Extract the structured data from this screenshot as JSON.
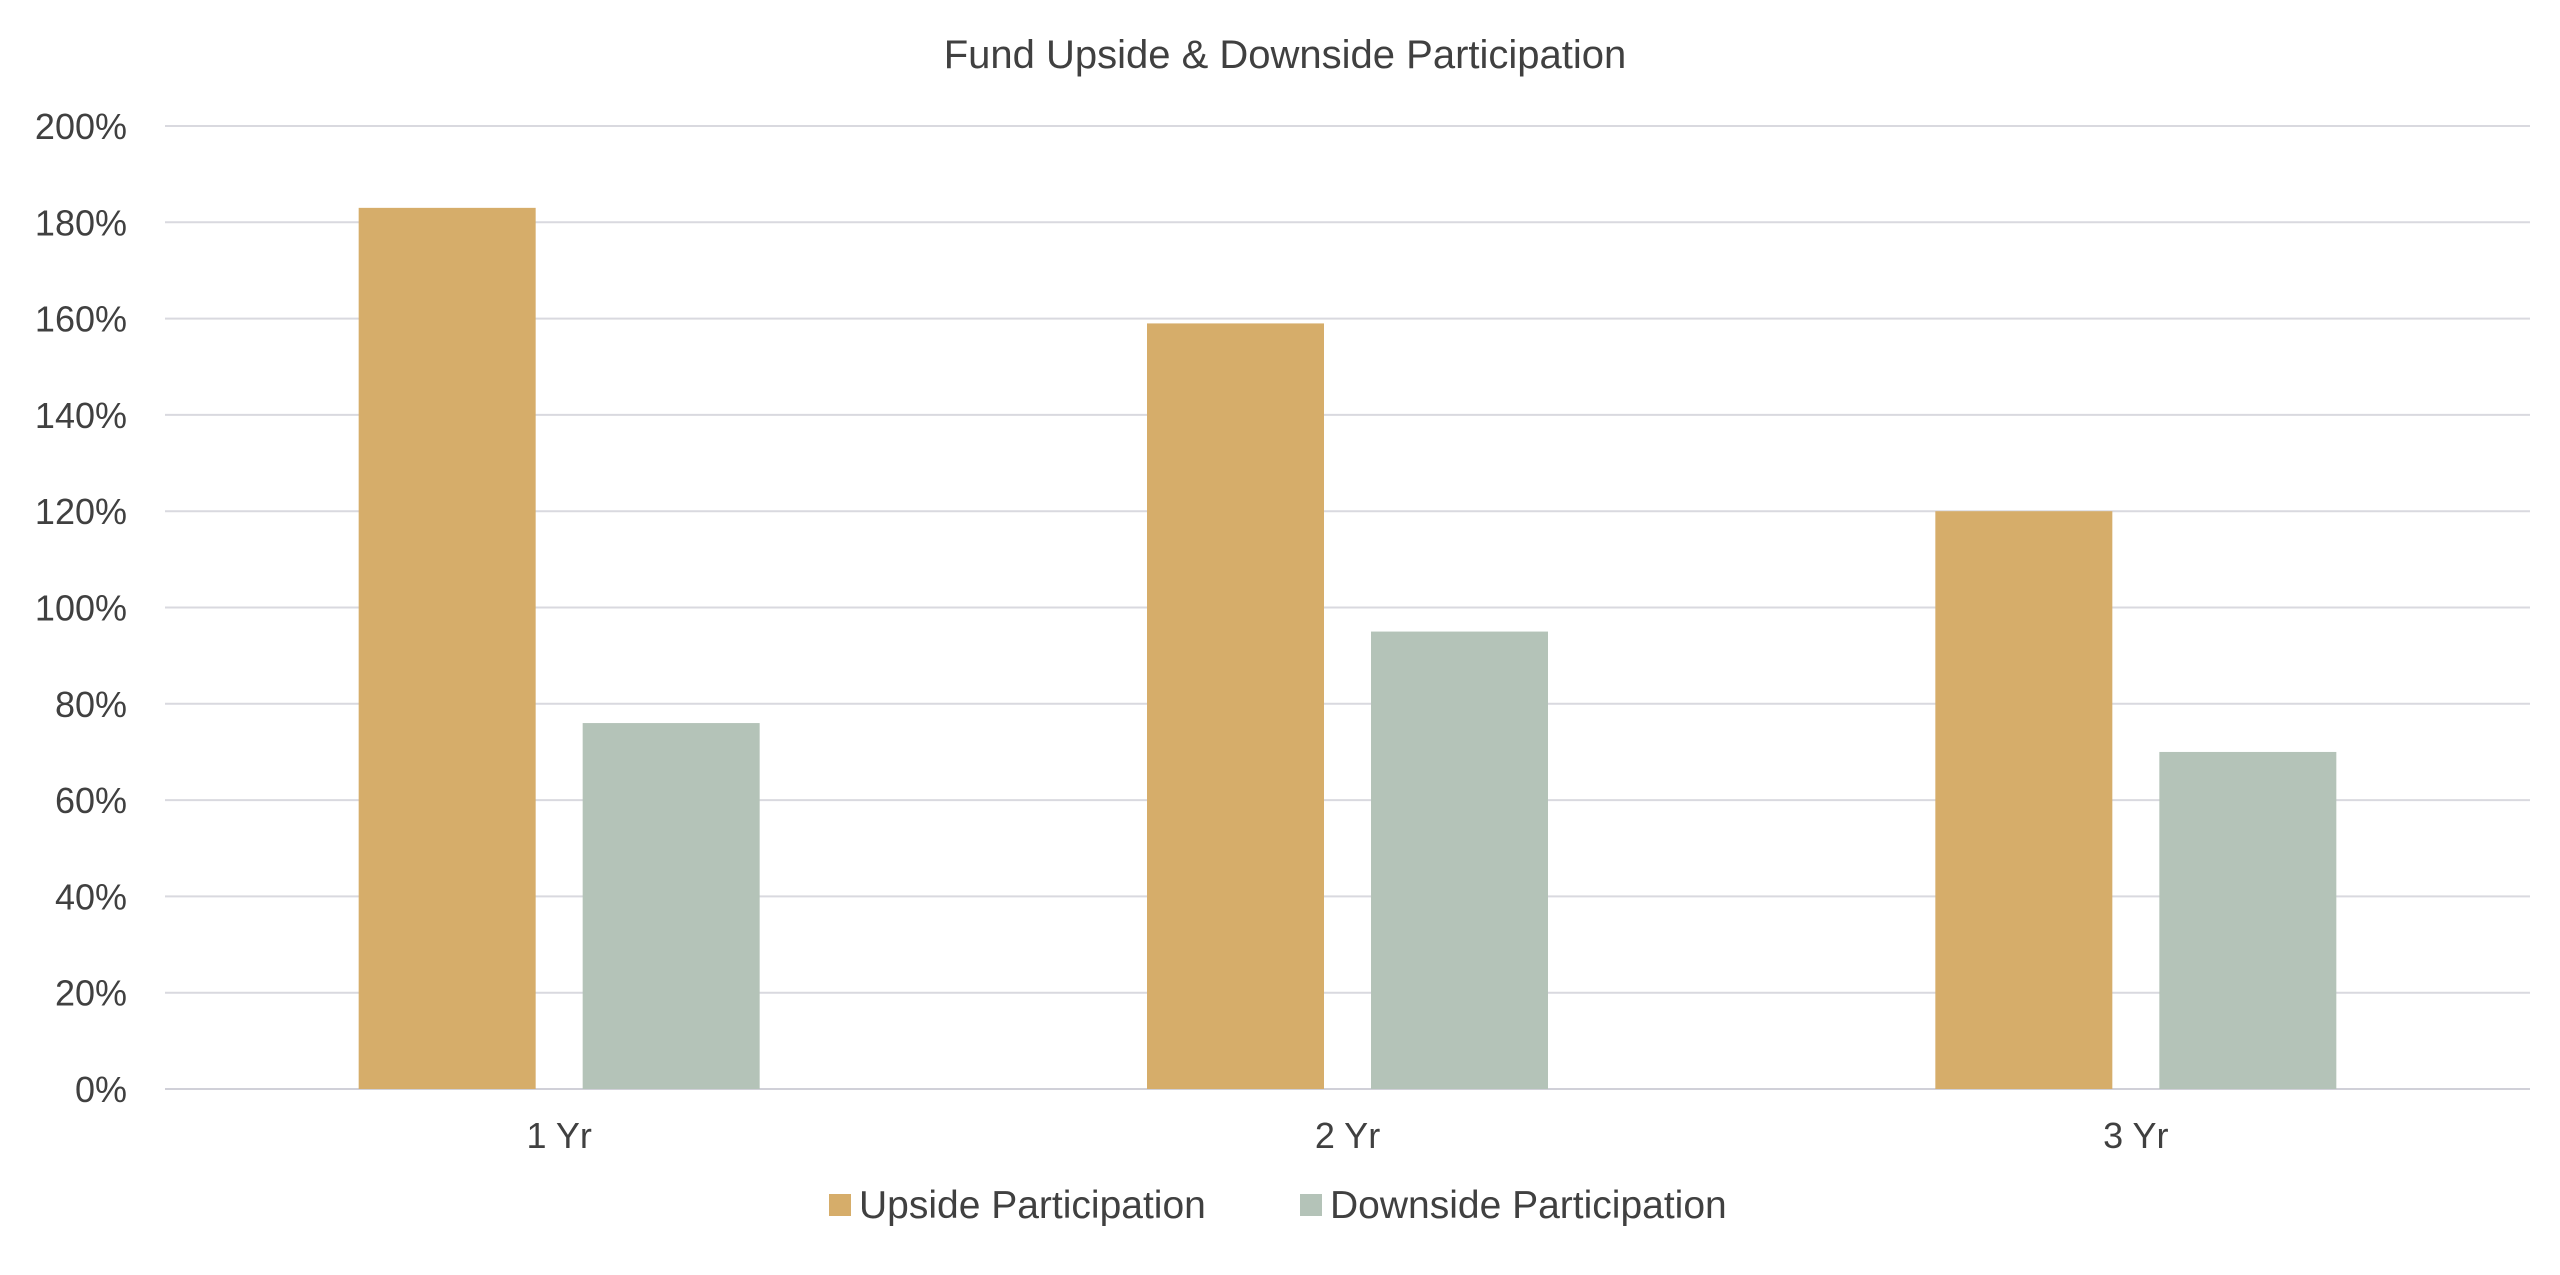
{
  "chart_data": {
    "type": "bar",
    "title": "Fund Upside & Downside Participation",
    "xlabel": "",
    "ylabel": "",
    "categories": [
      "1 Yr",
      "2 Yr",
      "3 Yr"
    ],
    "series": [
      {
        "name": "Upside Participation",
        "values": [
          183,
          159,
          120
        ],
        "color": "#d6ad6a"
      },
      {
        "name": "Downside Participation",
        "values": [
          76,
          95,
          70
        ],
        "color": "#b4c3b8"
      }
    ],
    "ylim": [
      0,
      200
    ],
    "yticks": [
      0,
      20,
      40,
      60,
      80,
      100,
      120,
      140,
      160,
      180,
      200
    ],
    "ytick_labels": [
      "0%",
      "20%",
      "40%",
      "60%",
      "80%",
      "100%",
      "120%",
      "140%",
      "160%",
      "180%",
      "200%"
    ],
    "grid": true,
    "legend_position": "bottom"
  }
}
